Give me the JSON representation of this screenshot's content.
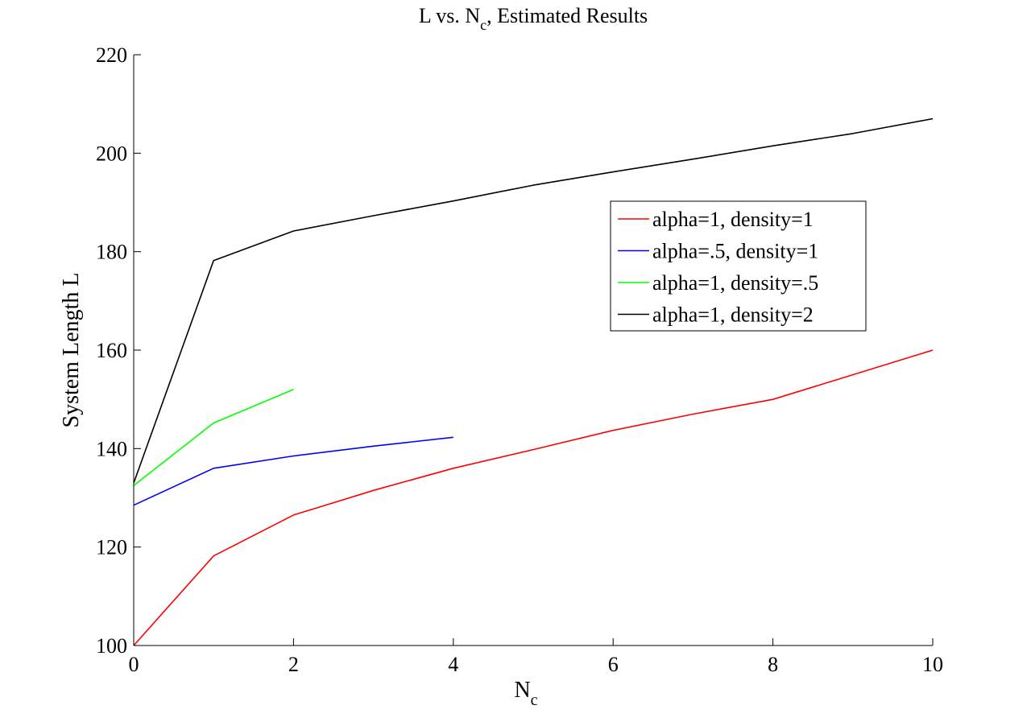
{
  "chart_data": {
    "type": "line",
    "title": {
      "main": "L vs. N",
      "sub": "c",
      "rest": ", Estimated Results"
    },
    "xlabel": {
      "main": "N",
      "sub": "c"
    },
    "ylabel": "System Length L",
    "xlim": [
      0,
      10
    ],
    "ylim": [
      100,
      220
    ],
    "xticks": [
      0,
      2,
      4,
      6,
      8,
      10
    ],
    "yticks": [
      100,
      120,
      140,
      160,
      180,
      200,
      220
    ],
    "grid": false,
    "legend_position": "upper-right",
    "series": [
      {
        "name": "alpha=1, density=1",
        "color": "#ff0000",
        "x": [
          0,
          1,
          2,
          3,
          4,
          5,
          6,
          7,
          8,
          9,
          10
        ],
        "y": [
          100,
          118.2,
          126.5,
          131.5,
          136,
          139.8,
          143.7,
          147,
          150,
          155,
          160
        ]
      },
      {
        "name": "alpha=.5, density=1",
        "color": "#0000ff",
        "x": [
          0,
          1,
          2,
          3,
          4
        ],
        "y": [
          128.5,
          136,
          138.5,
          140.5,
          142.3
        ]
      },
      {
        "name": "alpha=1, density=.5",
        "color": "#00ff00",
        "x": [
          0,
          1,
          2
        ],
        "y": [
          132.5,
          145.2,
          152
        ]
      },
      {
        "name": "alpha=1, density=2",
        "color": "#000000",
        "x": [
          0,
          1,
          2,
          3,
          4,
          5,
          6,
          7,
          8,
          9,
          10
        ],
        "y": [
          133,
          178.2,
          184.2,
          187.3,
          190.3,
          193.5,
          196.2,
          198.8,
          201.5,
          204,
          207
        ]
      }
    ]
  }
}
